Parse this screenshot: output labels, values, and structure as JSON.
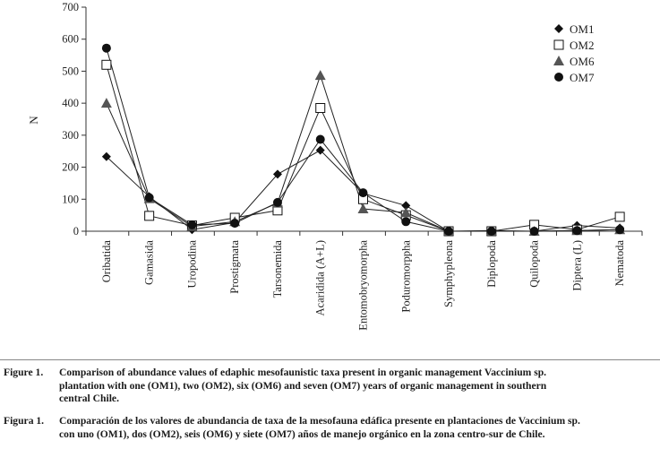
{
  "chart_data": {
    "type": "line",
    "categories": [
      "Oribatida",
      "Gamasida",
      "Uropodina",
      "Prostigmata",
      "Tarsonemida",
      "Acaridida (A+L)",
      "Entomobryomorpha",
      "Poduromorppha",
      "Symphypleona",
      "Diplopoda",
      "Quilopoda",
      "Diptera (L)",
      "Nematoda"
    ],
    "series": [
      {
        "name": "OM1",
        "marker": "diamond",
        "values": [
          233,
          108,
          5,
          27,
          178,
          253,
          118,
          80,
          0,
          2,
          0,
          18,
          10
        ]
      },
      {
        "name": "OM2",
        "marker": "square",
        "values": [
          520,
          48,
          18,
          42,
          65,
          385,
          100,
          50,
          0,
          0,
          20,
          5,
          45
        ]
      },
      {
        "name": "OM6",
        "marker": "triangle",
        "values": [
          400,
          102,
          15,
          30,
          88,
          487,
          70,
          58,
          0,
          0,
          0,
          2,
          5
        ]
      },
      {
        "name": "OM7",
        "marker": "circle",
        "values": [
          572,
          105,
          20,
          25,
          90,
          287,
          120,
          30,
          0,
          0,
          0,
          2,
          5
        ]
      }
    ],
    "ylabel": "N",
    "xlabel": "",
    "ylim": [
      0,
      700
    ],
    "yticks": [
      0,
      100,
      200,
      300,
      400,
      500,
      600,
      700
    ],
    "legend_position": "top-right"
  },
  "caption_en": {
    "label": "Figure 1.",
    "line1": "Comparison of abundance values of edaphic mesofaunistic taxa present in organic management Vaccinium sp.",
    "line2": "plantation with one (OM1), two (OM2), six (OM6) and seven (OM7) years of organic management in southern",
    "line3": "central Chile."
  },
  "caption_es": {
    "label": "Figura 1.",
    "line1": "Comparación de los valores de abundancia de taxa de la mesofauna edáfica presente en plantaciones de Vaccinium sp.",
    "line2": "con uno (OM1), dos (OM2), seis (OM6) y siete (OM7) años de manejo orgánico en la zona centro-sur de Chile."
  }
}
